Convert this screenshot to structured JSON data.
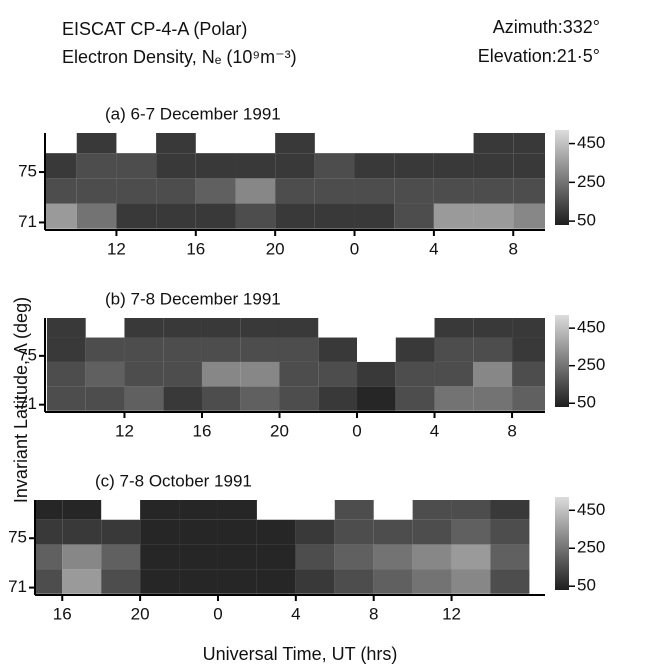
{
  "header": {
    "title": "EISCAT  CP-4-A  (Polar)",
    "subtitle": "Electron Density, Nₑ (10⁹m⁻³)",
    "azimuth": "Azimuth:332°",
    "elevation": "Elevation:21·5°"
  },
  "figure": {
    "ylabel": "Invariant Latitude, Λ (deg)",
    "xlabel": "Universal Time, UT (hrs)"
  },
  "chart_data": [
    {
      "type": "heatmap",
      "title": "(a) 6-7 December 1991",
      "x": [
        9,
        11,
        13,
        15,
        17,
        19,
        21,
        23,
        25,
        27,
        29,
        31,
        33
      ],
      "y": [
        71.5,
        73.5,
        75.5,
        77.5
      ],
      "values": [
        [
          350,
          250,
          100,
          100,
          100,
          150,
          100,
          100,
          100,
          150,
          350,
          350,
          300
        ],
        [
          150,
          150,
          150,
          150,
          200,
          300,
          150,
          150,
          150,
          150,
          150,
          150,
          150
        ],
        [
          100,
          150,
          150,
          100,
          100,
          100,
          100,
          150,
          100,
          100,
          100,
          100,
          100
        ],
        [
          null,
          100,
          null,
          100,
          null,
          null,
          100,
          null,
          null,
          null,
          null,
          100,
          100
        ]
      ],
      "xlim": [
        8.4,
        33.6
      ],
      "xticks": [
        12,
        16,
        20,
        {
          "value": 24,
          "label": "0"
        },
        {
          "value": 28,
          "label": "4"
        },
        {
          "value": 32,
          "label": "8"
        }
      ],
      "ylim": [
        70.4,
        78.1
      ],
      "yticks": [
        71,
        75
      ],
      "colorbar": {
        "lim": [
          30,
          520
        ],
        "ticks": [
          450,
          250,
          50
        ]
      }
    },
    {
      "type": "heatmap",
      "title": "(b) 7-8 December 1991",
      "x": [
        9,
        11,
        13,
        15,
        17,
        19,
        21,
        23,
        25,
        27,
        29,
        31,
        33
      ],
      "y": [
        71.5,
        73.5,
        75.5,
        77.5
      ],
      "values": [
        [
          150,
          150,
          200,
          100,
          150,
          200,
          150,
          100,
          50,
          150,
          250,
          250,
          200
        ],
        [
          150,
          200,
          150,
          150,
          300,
          300,
          150,
          150,
          100,
          150,
          150,
          300,
          150
        ],
        [
          100,
          150,
          150,
          150,
          150,
          150,
          150,
          100,
          null,
          100,
          150,
          150,
          100
        ],
        [
          100,
          null,
          100,
          100,
          100,
          100,
          100,
          null,
          null,
          null,
          100,
          100,
          100
        ]
      ],
      "xlim": [
        7.9,
        33.7
      ],
      "xticks": [
        12,
        16,
        20,
        {
          "value": 24,
          "label": "0"
        },
        {
          "value": 28,
          "label": "4"
        },
        {
          "value": 32,
          "label": "8"
        }
      ],
      "ylim": [
        70.4,
        78.1
      ],
      "yticks": [
        71,
        75
      ],
      "colorbar": {
        "lim": [
          30,
          520
        ],
        "ticks": [
          450,
          250,
          50
        ]
      }
    },
    {
      "type": "heatmap",
      "title": "(c) 7-8 October 1991",
      "x": [
        15,
        17,
        19,
        21,
        23,
        25,
        27,
        29,
        31,
        33,
        35,
        37,
        39
      ],
      "y": [
        71.5,
        73.5,
        75.5,
        77.5
      ],
      "values": [
        [
          150,
          350,
          150,
          50,
          50,
          50,
          50,
          100,
          150,
          200,
          250,
          300,
          150
        ],
        [
          200,
          300,
          200,
          50,
          50,
          50,
          50,
          150,
          200,
          250,
          300,
          350,
          200
        ],
        [
          100,
          100,
          100,
          50,
          50,
          50,
          50,
          100,
          150,
          150,
          150,
          200,
          150
        ],
        [
          50,
          50,
          null,
          50,
          50,
          50,
          null,
          null,
          150,
          null,
          150,
          150,
          100
        ]
      ],
      "xlim": [
        14.6,
        40.8
      ],
      "xticks": [
        16,
        20,
        {
          "value": 24,
          "label": "0"
        },
        {
          "value": 28,
          "label": "4"
        },
        {
          "value": 32,
          "label": "8"
        },
        {
          "value": 36,
          "label": "12"
        }
      ],
      "ylim": [
        70.4,
        78.1
      ],
      "yticks": [
        71,
        75
      ],
      "colorbar": {
        "lim": [
          30,
          520
        ],
        "ticks": [
          450,
          250,
          50
        ]
      }
    }
  ]
}
